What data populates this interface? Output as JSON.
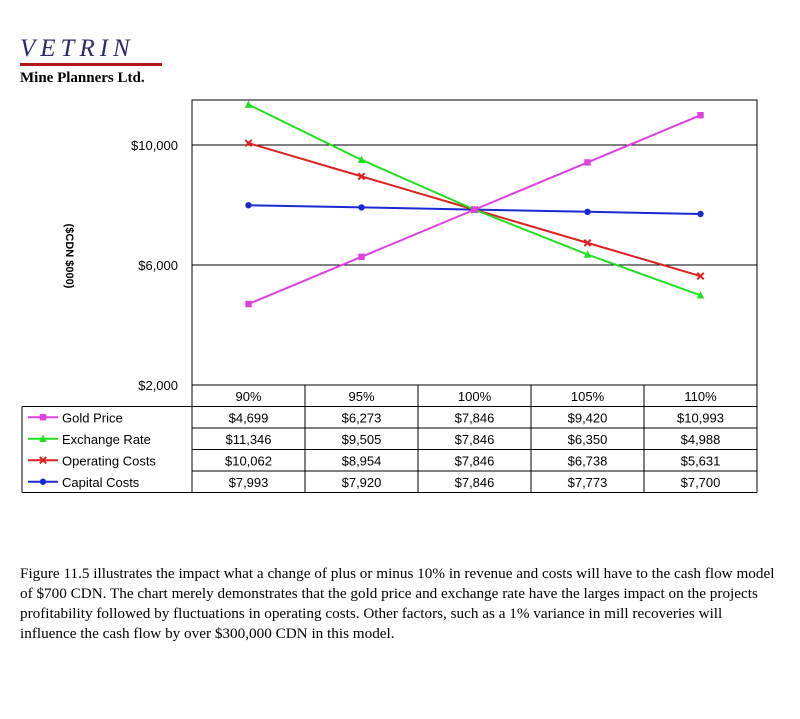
{
  "logo": {
    "name": "VETRIN",
    "subtitle": "Mine Planners Ltd."
  },
  "chart_data": {
    "type": "line",
    "ylabel": "($CDN $000)",
    "ylim": [
      2000,
      11500
    ],
    "yticks": [
      "$2,000",
      "$6,000",
      "$10,000"
    ],
    "ytick_values": [
      2000,
      6000,
      10000
    ],
    "categories": [
      "90%",
      "95%",
      "100%",
      "105%",
      "110%"
    ],
    "grid": true,
    "legend": "data table below chart",
    "series": [
      {
        "name": "Gold Price",
        "color": "#e040e0",
        "marker": "square",
        "values": [
          4699,
          6273,
          7846,
          9420,
          10993
        ],
        "labels": [
          "$4,699",
          "$6,273",
          "$7,846",
          "$9,420",
          "$10,993"
        ]
      },
      {
        "name": "Exchange Rate",
        "color": "#20e020",
        "marker": "triangle",
        "values": [
          11346,
          9505,
          7846,
          6350,
          4988
        ],
        "labels": [
          "$11,346",
          "$9,505",
          "$7,846",
          "$6,350",
          "$4,988"
        ]
      },
      {
        "name": "Operating Costs",
        "color": "#e02020",
        "marker": "x",
        "values": [
          10062,
          8954,
          7846,
          6738,
          5631
        ],
        "labels": [
          "$10,062",
          "$8,954",
          "$7,846",
          "$6,738",
          "$5,631"
        ]
      },
      {
        "name": "Capital Costs",
        "color": "#1a2ad0",
        "marker": "circle",
        "values": [
          7993,
          7920,
          7846,
          7773,
          7700
        ],
        "labels": [
          "$7,993",
          "$7,920",
          "$7,846",
          "$7,773",
          "$7,700"
        ]
      }
    ]
  },
  "caption": "Figure 11.5 illustrates the impact what a change of plus or minus 10% in revenue and costs will have to the cash flow model of $700 CDN. The chart merely demonstrates that the gold price and exchange rate have the larges impact on the projects profitability followed by fluctuations in operating costs. Other factors, such as a 1% variance in mill recoveries will influence the cash flow by over $300,000 CDN in this model."
}
